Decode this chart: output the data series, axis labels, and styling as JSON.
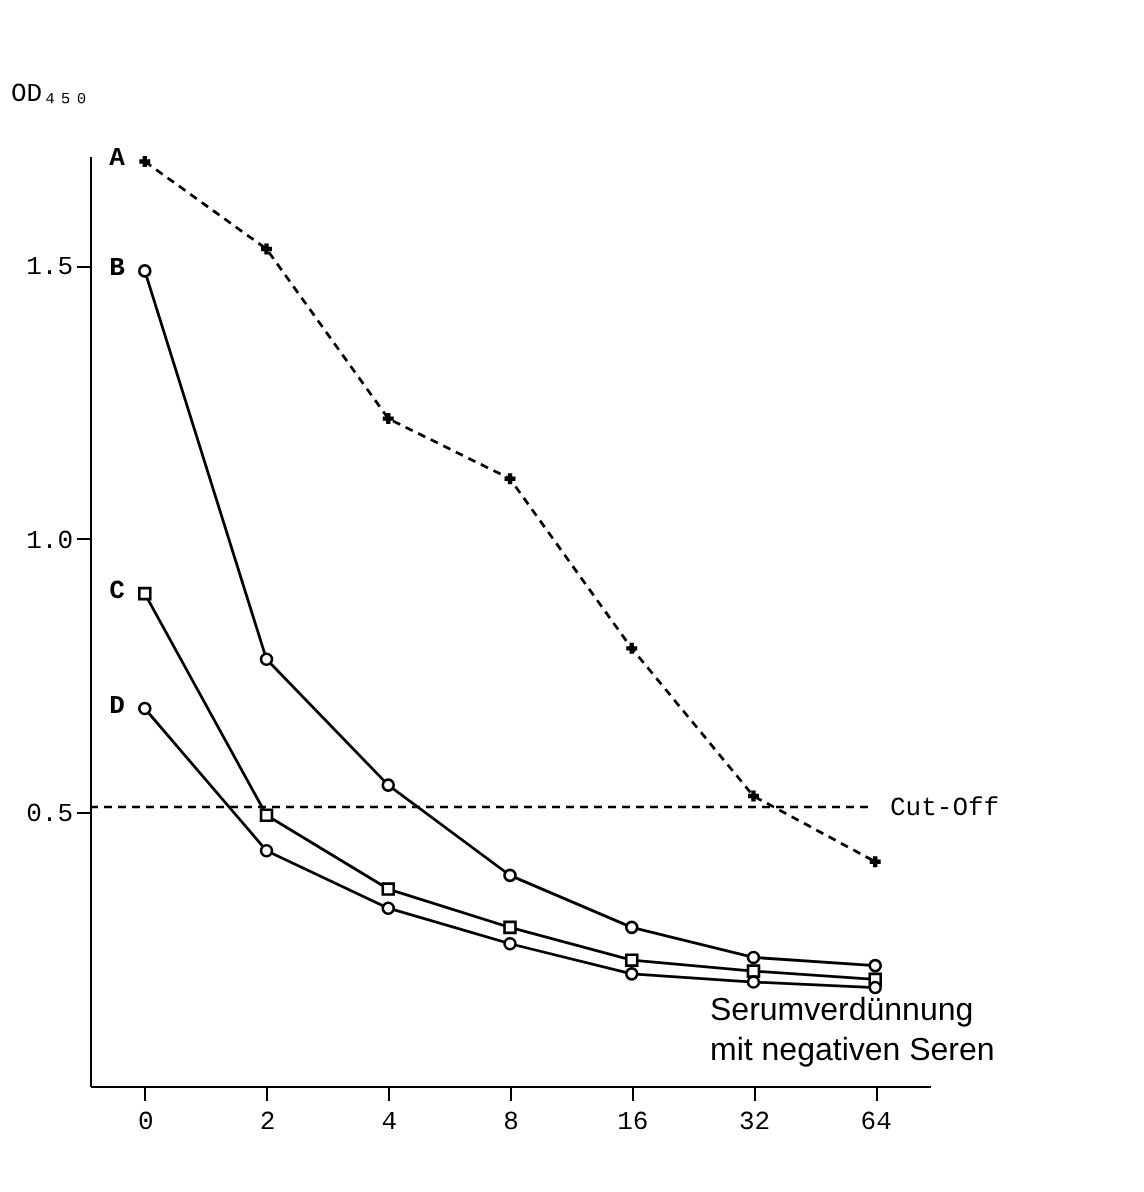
{
  "chart_data": {
    "type": "line",
    "ylabel": "OD₄₅₀",
    "xlabel": "Serumverdünnung mit negativen Seren",
    "categories": [
      "0",
      "2",
      "4",
      "8",
      "16",
      "32",
      "64"
    ],
    "series": [
      {
        "name": "A",
        "color": "#000000",
        "marker": "cross",
        "line_style": "dashed",
        "values": [
          1.69,
          1.53,
          1.22,
          1.11,
          0.8,
          0.53,
          0.41
        ]
      },
      {
        "name": "B",
        "color": "#000000",
        "marker": "circle",
        "line_style": "solid",
        "values": [
          1.49,
          0.78,
          0.55,
          0.385,
          0.29,
          0.235,
          0.22
        ]
      },
      {
        "name": "C",
        "color": "#000000",
        "marker": "square",
        "line_style": "solid",
        "values": [
          0.9,
          0.495,
          0.36,
          0.29,
          0.23,
          0.21,
          0.195
        ]
      },
      {
        "name": "D",
        "color": "#000000",
        "marker": "circle",
        "line_style": "solid",
        "values": [
          0.69,
          0.43,
          0.325,
          0.26,
          0.205,
          0.19,
          0.18
        ]
      }
    ],
    "ylim": [
      0,
      1.7
    ],
    "yticks": [
      {
        "value": 0.5,
        "label": "0.5"
      },
      {
        "value": 1.0,
        "label": "1.0"
      },
      {
        "value": 1.5,
        "label": "1.5"
      }
    ],
    "ref_lines": [
      {
        "axis": "y",
        "value": 0.51,
        "label": "Cut-Off",
        "line_style": "dashed",
        "color": "#000000"
      }
    ],
    "grid": false
  }
}
